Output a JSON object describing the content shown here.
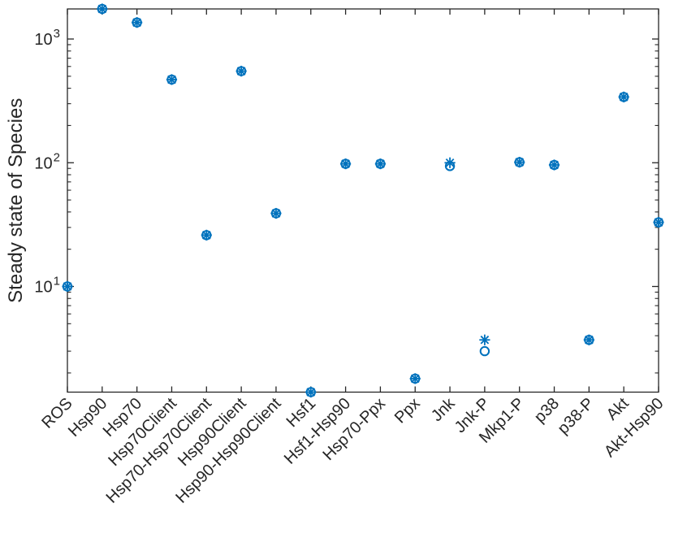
{
  "figure": {
    "background": "#ffffff"
  },
  "chart_data": {
    "type": "scatter",
    "title": "",
    "xlabel": "",
    "ylabel": "Steady state of Species",
    "yscale": "log",
    "ylim": [
      1.4,
      1750
    ],
    "grid": false,
    "legend_position": "none",
    "axis_color": "#262626",
    "marker_color": "#0072BD",
    "ytick_exponents": [
      1,
      2,
      3
    ],
    "ytick_base": "10",
    "categories": [
      "ROS",
      "Hsp90",
      "Hsp70",
      "Hsp70Client",
      "Hsp70-Hsp70Client",
      "Hsp90Client",
      "Hsp90-Hsp90Client",
      "Hsf1",
      "Hsf1-Hsp90",
      "Hsp70-Ppx",
      "Ppx",
      "Jnk",
      "Jnk-P",
      "Mkp1-P",
      "p38",
      "p38-P",
      "Akt",
      "Akt-Hsp90"
    ],
    "series": [
      {
        "name": "steady-state-circle-markers",
        "marker": "o",
        "values": [
          10,
          1750,
          1360,
          470,
          26,
          550,
          39,
          1.4,
          98,
          98,
          1.8,
          94,
          3.0,
          101,
          96,
          3.7,
          340,
          33
        ]
      },
      {
        "name": "steady-state-asterisk-markers",
        "marker": "*",
        "values": [
          10,
          1750,
          1360,
          470,
          26,
          550,
          39,
          1.4,
          98,
          98,
          1.8,
          100,
          3.7,
          101,
          96,
          3.7,
          340,
          33
        ]
      }
    ]
  }
}
